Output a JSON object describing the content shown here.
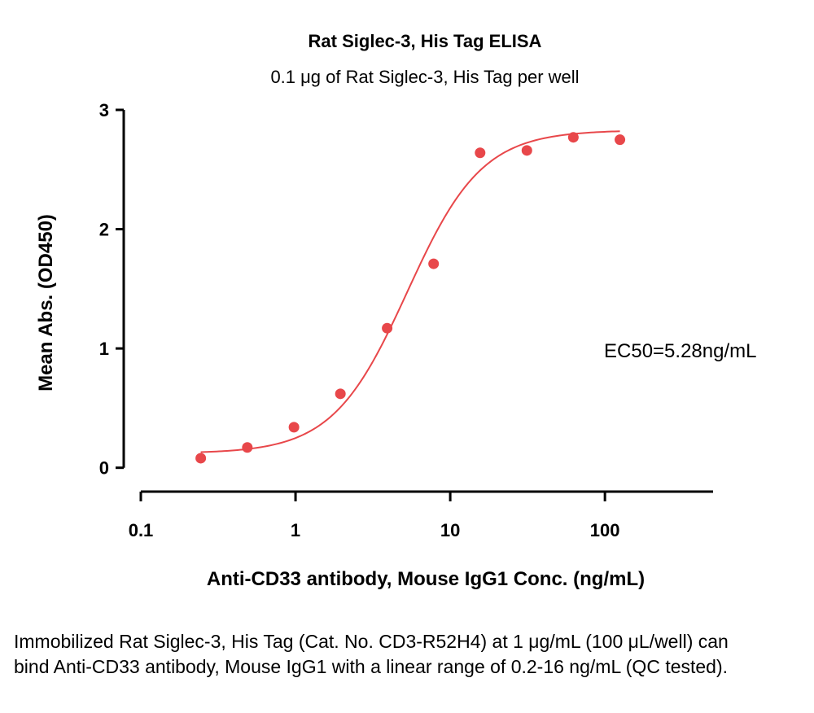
{
  "chart_data": {
    "type": "scatter",
    "title": "Rat Siglec-3, His Tag ELISA",
    "subtitle": "0.1 μg of Rat Siglec-3, His Tag per well",
    "xlabel": "Anti-CD33 antibody, Mouse IgG1 Conc. (ng/mL)",
    "ylabel": "Mean Abs. (OD450)",
    "x_scale": "log",
    "xlim": [
      0.1,
      500
    ],
    "ylim": [
      -0.2,
      3
    ],
    "x_ticks": [
      0.1,
      1,
      10,
      100
    ],
    "x_tick_labels": [
      "0.1",
      "1",
      "10",
      "100"
    ],
    "y_ticks": [
      0,
      1,
      2,
      3
    ],
    "y_tick_labels": [
      "0",
      "1",
      "2",
      "3"
    ],
    "grid": false,
    "series": [
      {
        "x": [
          0.244,
          0.488,
          0.977,
          1.95,
          3.91,
          7.81,
          15.6,
          31.3,
          62.5,
          125
        ],
        "y": [
          0.08,
          0.17,
          0.34,
          0.62,
          1.17,
          1.71,
          2.64,
          2.66,
          2.77,
          2.75
        ],
        "color": "#e8474a",
        "fit": "4PL"
      }
    ],
    "fit_params": {
      "bottom": 0.12,
      "top": 2.83,
      "ec50": 5.28,
      "hill": 1.8
    },
    "annotation": "EC50=5.28ng/mL"
  },
  "caption": "Immobilized Rat Siglec-3, His Tag (Cat. No. CD3-R52H4) at 1 μg/mL (100 μL/well) can bind Anti-CD33 antibody, Mouse IgG1 with a linear range of 0.2-16 ng/mL (QC tested)."
}
